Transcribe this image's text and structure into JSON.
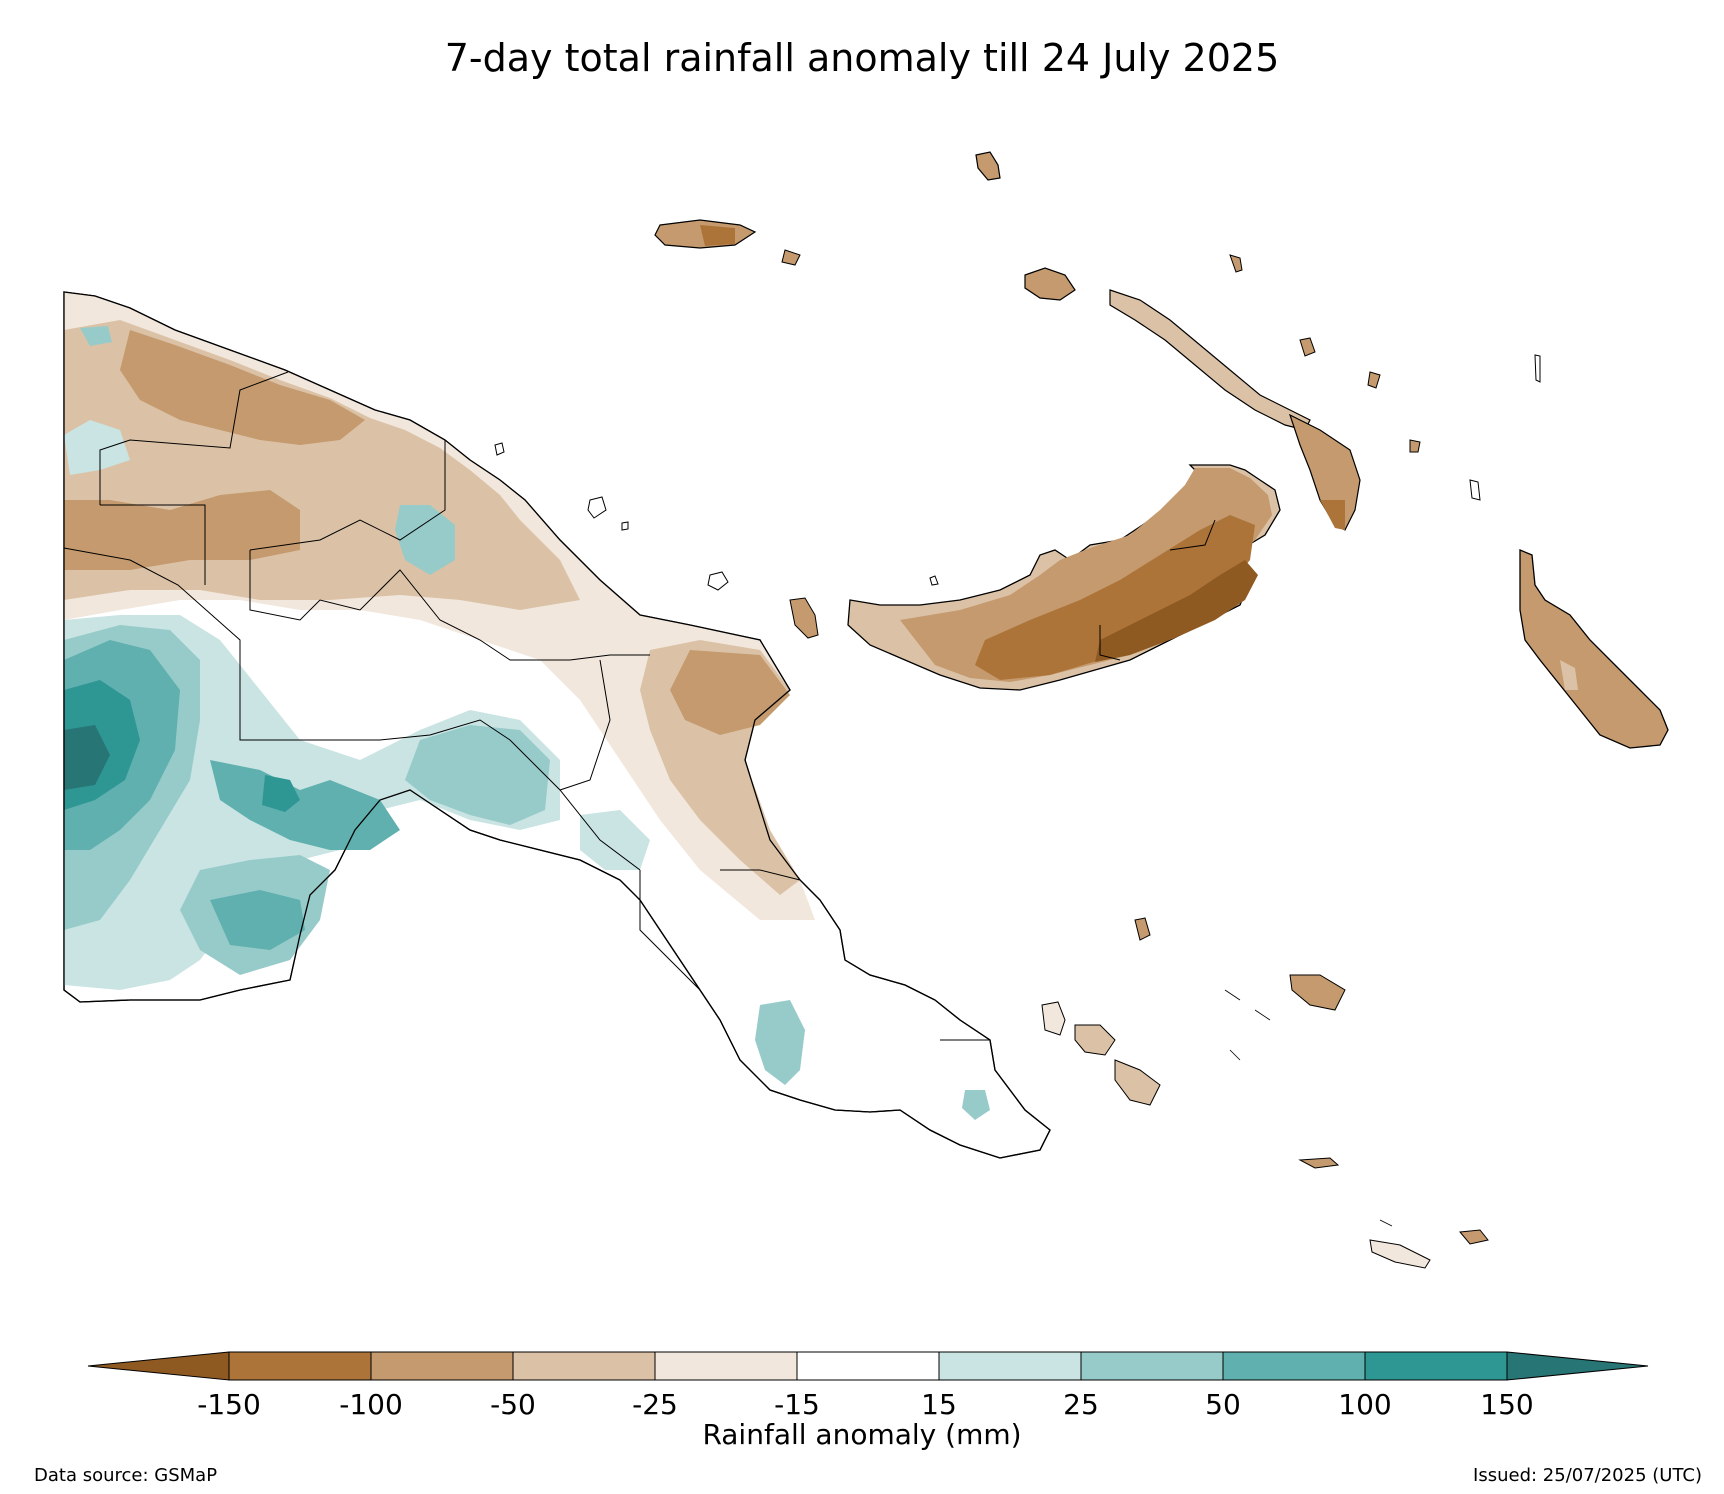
{
  "title": "7-day total rainfall anomaly till 24 July 2025",
  "colorbar": {
    "label": "Rainfall anomaly (mm)",
    "ticks": [
      "-150",
      "-100",
      "-50",
      "-25",
      "-15",
      "15",
      "25",
      "50",
      "100",
      "150"
    ],
    "below_color": "#8f5a22",
    "above_color": "#287575",
    "colors": [
      "#ad743a",
      "#c49a6e",
      "#dbc2a6",
      "#f2e7dd",
      "#ffffff",
      "#c9e4e3",
      "#96cbca",
      "#5fb0ae",
      "#2e9794"
    ]
  },
  "colors": {
    "dry_strong": "#8f5a22",
    "dry_150": "#ad743a",
    "dry_100": "#c49a6e",
    "dry_50": "#dbc2a6",
    "dry_25": "#f2e7dd",
    "neutral": "#ffffff",
    "wet_25": "#c9e4e3",
    "wet_50": "#96cbca",
    "wet_100": "#5fb0ae",
    "wet_150": "#2e9794",
    "wet_strong": "#287575",
    "outline": "#000000"
  },
  "footer": {
    "data_source": "Data source: GSMaP",
    "issued": "Issued: 25/07/2025 (UTC)"
  }
}
